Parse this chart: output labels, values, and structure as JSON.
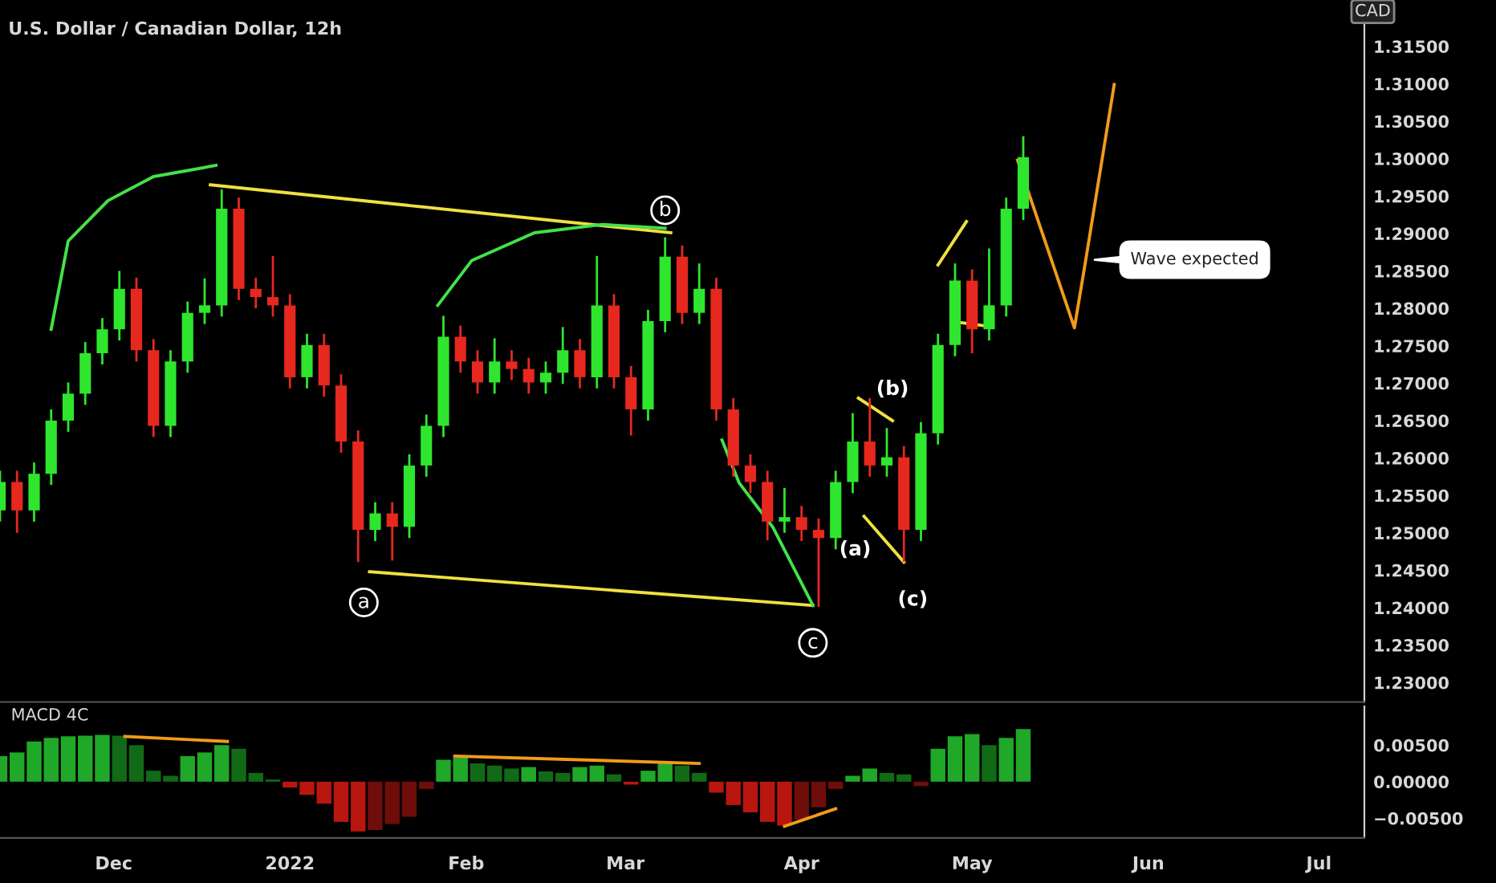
{
  "chart_data": [
    {
      "type": "candlestick",
      "title": "U.S. Dollar / Canadian Dollar, 12h",
      "x": [
        "2021-11-11",
        "2021-11-14",
        "2021-11-17",
        "2021-11-20",
        "2021-11-23",
        "2021-11-26",
        "2021-11-29",
        "2021-12-02",
        "2021-12-05",
        "2021-12-08",
        "2021-12-11",
        "2021-12-14",
        "2021-12-17",
        "2021-12-20",
        "2021-12-23",
        "2021-12-26",
        "2021-12-29",
        "2022-01-01",
        "2022-01-04",
        "2022-01-07",
        "2022-01-10",
        "2022-01-13",
        "2022-01-16",
        "2022-01-19",
        "2022-01-22",
        "2022-01-25",
        "2022-01-28",
        "2022-01-31",
        "2022-02-03",
        "2022-02-06",
        "2022-02-09",
        "2022-02-12",
        "2022-02-15",
        "2022-02-18",
        "2022-02-21",
        "2022-02-24",
        "2022-02-27",
        "2022-03-02",
        "2022-03-05",
        "2022-03-08",
        "2022-03-11",
        "2022-03-14",
        "2022-03-17",
        "2022-03-20",
        "2022-03-23",
        "2022-03-26",
        "2022-03-29",
        "2022-04-01",
        "2022-04-04",
        "2022-04-07",
        "2022-04-10",
        "2022-04-13",
        "2022-04-16",
        "2022-04-19",
        "2022-04-22",
        "2022-04-25",
        "2022-04-28",
        "2022-05-01",
        "2022-05-04",
        "2022-05-07",
        "2022-05-10"
      ],
      "ohlc": [
        [
          1.253,
          1.2583,
          1.2515,
          1.2568
        ],
        [
          1.2568,
          1.2583,
          1.25,
          1.253
        ],
        [
          1.253,
          1.2594,
          1.2515,
          1.2579
        ],
        [
          1.2579,
          1.2665,
          1.2564,
          1.265
        ],
        [
          1.265,
          1.2701,
          1.2635,
          1.2686
        ],
        [
          1.2686,
          1.2755,
          1.2671,
          1.274
        ],
        [
          1.274,
          1.2787,
          1.2725,
          1.2772
        ],
        [
          1.2772,
          1.285,
          1.2757,
          1.2826
        ],
        [
          1.2826,
          1.2841,
          1.2729,
          1.2744
        ],
        [
          1.2744,
          1.2759,
          1.2628,
          1.2643
        ],
        [
          1.2643,
          1.2744,
          1.2628,
          1.2729
        ],
        [
          1.2729,
          1.2809,
          1.2714,
          1.2794
        ],
        [
          1.2794,
          1.284,
          1.2779,
          1.2804
        ],
        [
          1.2804,
          1.2959,
          1.2789,
          1.2933
        ],
        [
          1.2933,
          1.2948,
          1.2811,
          1.2826
        ],
        [
          1.2826,
          1.2841,
          1.28,
          1.2815
        ],
        [
          1.2815,
          1.287,
          1.2789,
          1.2804
        ],
        [
          1.2804,
          1.2819,
          1.2693,
          1.2708
        ],
        [
          1.2708,
          1.2766,
          1.2693,
          1.2751
        ],
        [
          1.2751,
          1.2766,
          1.2682,
          1.2697
        ],
        [
          1.2697,
          1.2712,
          1.2607,
          1.2622
        ],
        [
          1.2622,
          1.2637,
          1.2461,
          1.2504
        ],
        [
          1.2504,
          1.2541,
          1.2489,
          1.2526
        ],
        [
          1.2526,
          1.2541,
          1.2463,
          1.2508
        ],
        [
          1.2508,
          1.2605,
          1.2493,
          1.259
        ],
        [
          1.259,
          1.2658,
          1.2575,
          1.2643
        ],
        [
          1.2643,
          1.279,
          1.2628,
          1.2762
        ],
        [
          1.2762,
          1.2777,
          1.2714,
          1.2729
        ],
        [
          1.2729,
          1.2744,
          1.2686,
          1.2701
        ],
        [
          1.2701,
          1.276,
          1.2686,
          1.2729
        ],
        [
          1.2729,
          1.2744,
          1.2704,
          1.2719
        ],
        [
          1.2719,
          1.2734,
          1.2686,
          1.2701
        ],
        [
          1.2701,
          1.2729,
          1.2686,
          1.2714
        ],
        [
          1.2714,
          1.2775,
          1.2699,
          1.2744
        ],
        [
          1.2744,
          1.2759,
          1.2693,
          1.2708
        ],
        [
          1.2708,
          1.287,
          1.2693,
          1.2804
        ],
        [
          1.2804,
          1.2819,
          1.2693,
          1.2708
        ],
        [
          1.2708,
          1.2723,
          1.263,
          1.2665
        ],
        [
          1.2665,
          1.2798,
          1.265,
          1.2783
        ],
        [
          1.2783,
          1.2895,
          1.2768,
          1.2869
        ],
        [
          1.2869,
          1.2884,
          1.2779,
          1.2794
        ],
        [
          1.2794,
          1.286,
          1.2779,
          1.2826
        ],
        [
          1.2826,
          1.2841,
          1.265,
          1.2665
        ],
        [
          1.2665,
          1.268,
          1.2575,
          1.259
        ],
        [
          1.259,
          1.2605,
          1.2553,
          1.2568
        ],
        [
          1.2568,
          1.2583,
          1.249,
          1.2515
        ],
        [
          1.2515,
          1.256,
          1.25,
          1.2521
        ],
        [
          1.2521,
          1.2536,
          1.2489,
          1.2504
        ],
        [
          1.2504,
          1.2519,
          1.2401,
          1.2493
        ],
        [
          1.2493,
          1.2583,
          1.2478,
          1.2568
        ],
        [
          1.2568,
          1.266,
          1.2553,
          1.2622
        ],
        [
          1.2622,
          1.268,
          1.2575,
          1.259
        ],
        [
          1.259,
          1.264,
          1.2575,
          1.2601
        ],
        [
          1.2601,
          1.2616,
          1.2461,
          1.2504
        ],
        [
          1.2504,
          1.2648,
          1.2489,
          1.2633
        ],
        [
          1.2633,
          1.2766,
          1.2618,
          1.2751
        ],
        [
          1.2751,
          1.286,
          1.2736,
          1.2837
        ],
        [
          1.2837,
          1.2852,
          1.274,
          1.2772
        ],
        [
          1.2772,
          1.288,
          1.2757,
          1.2804
        ],
        [
          1.2804,
          1.2948,
          1.2789,
          1.2933
        ],
        [
          1.2933,
          1.303,
          1.2918,
          1.3002
        ]
      ],
      "colors": [
        "#2ee62e",
        "#e6281e",
        "#2ee62e",
        "#2ee62e",
        "#2ee62e",
        "#2ee62e",
        "#2ee62e",
        "#2ee62e",
        "#e6281e",
        "#e6281e",
        "#2ee62e",
        "#2ee62e",
        "#2ee62e",
        "#2ee62e",
        "#e6281e",
        "#e6281e",
        "#e6281e",
        "#e6281e",
        "#2ee62e",
        "#e6281e",
        "#e6281e",
        "#e6281e",
        "#2ee62e",
        "#e6281e",
        "#2ee62e",
        "#2ee62e",
        "#2ee62e",
        "#e6281e",
        "#e6281e",
        "#2ee62e",
        "#e6281e",
        "#e6281e",
        "#2ee62e",
        "#2ee62e",
        "#e6281e",
        "#2ee62e",
        "#e6281e",
        "#e6281e",
        "#2ee62e",
        "#2ee62e",
        "#e6281e",
        "#2ee62e",
        "#e6281e",
        "#e6281e",
        "#e6281e",
        "#e6281e",
        "#2ee62e",
        "#e6281e",
        "#e6281e",
        "#2ee62e",
        "#2ee62e",
        "#e6281e",
        "#2ee62e",
        "#e6281e",
        "#2ee62e",
        "#2ee62e",
        "#2ee62e",
        "#e6281e",
        "#2ee62e",
        "#2ee62e",
        "#2ee62e"
      ],
      "series": [
        {
          "type": "line",
          "color": "#f0e040",
          "x": [
            "2021-12-18",
            "2022-03-09"
          ],
          "values": [
            1.2965,
            1.2901
          ]
        },
        {
          "type": "line",
          "color": "#f0e040",
          "x": [
            "2022-01-15",
            "2022-04-03"
          ],
          "values": [
            1.2448,
            1.2403
          ]
        },
        {
          "type": "line",
          "color": "#f0e040",
          "x": [
            "2022-04-11",
            "2022-04-17"
          ],
          "values": [
            1.268,
            1.265
          ]
        },
        {
          "type": "line",
          "color": "#f0e040",
          "x": [
            "2022-04-12",
            "2022-04-19"
          ],
          "values": [
            1.2522,
            1.2461
          ]
        },
        {
          "type": "line",
          "color": "#f0e040",
          "x": [
            "2022-04-25",
            "2022-04-30"
          ],
          "values": [
            1.2858,
            1.2916
          ]
        },
        {
          "type": "line",
          "color": "#f0e040",
          "x": [
            "2022-04-29",
            "2022-05-03"
          ],
          "values": [
            1.2781,
            1.2777
          ]
        },
        {
          "type": "line",
          "color": "#44e04a",
          "x": [
            "2021-11-20",
            "2021-11-23",
            "2021-11-30",
            "2021-12-08",
            "2021-12-19"
          ],
          "values": [
            1.2772,
            1.289,
            1.2944,
            1.2976,
            1.2991
          ]
        },
        {
          "type": "line",
          "color": "#44e04a",
          "x": [
            "2022-01-27",
            "2022-02-02",
            "2022-02-13",
            "2022-02-25",
            "2022-03-08"
          ],
          "values": [
            1.2804,
            1.2864,
            1.2901,
            1.2912,
            1.2907
          ]
        },
        {
          "type": "line",
          "color": "#44e04a",
          "x": [
            "2022-03-18",
            "2022-03-21",
            "2022-03-27",
            "2022-04-03"
          ],
          "values": [
            1.2624,
            1.2567,
            1.2507,
            1.2403
          ]
        },
        {
          "type": "line",
          "color": "#f29a1c",
          "x": [
            "2022-05-09",
            "2022-05-19",
            "2022-05-21",
            "2022-05-26"
          ],
          "values": [
            1.2998,
            1.2774,
            1.2865,
            1.3099
          ]
        }
      ],
      "annotations": [
        {
          "text": "a",
          "x": "2022-01-14",
          "y": 1.2407
        },
        {
          "text": "b",
          "x": "2022-03-08",
          "y": 1.2931
        },
        {
          "text": "c",
          "x": "2022-04-03",
          "y": 1.2353
        },
        {
          "text": "(a)",
          "x": "2022-04-12",
          "y": 1.2522
        },
        {
          "text": "(b)",
          "x": "2022-04-17",
          "y": 1.265
        },
        {
          "text": "(c)",
          "x": "2022-04-19",
          "y": 1.2461
        },
        {
          "text": "Wave expected",
          "x": "2022-05-21",
          "y": 1.2865
        },
        "CAD"
      ],
      "xlim": [
        "2021-11-11",
        "2022-07-09"
      ],
      "ylim": [
        1.2274,
        1.3212
      ],
      "yticks": [
        {
          "value": 1.23,
          "label": "1.23000"
        },
        {
          "value": 1.235,
          "label": "1.23500"
        },
        {
          "value": 1.24,
          "label": "1.24000"
        },
        {
          "value": 1.245,
          "label": "1.24500"
        },
        {
          "value": 1.25,
          "label": "1.25000"
        },
        {
          "value": 1.255,
          "label": "1.25500"
        },
        {
          "value": 1.26,
          "label": "1.26000"
        },
        {
          "value": 1.265,
          "label": "1.26500"
        },
        {
          "value": 1.27,
          "label": "1.27000"
        },
        {
          "value": 1.275,
          "label": "1.27500"
        },
        {
          "value": 1.28,
          "label": "1.28000"
        },
        {
          "value": 1.285,
          "label": "1.28500"
        },
        {
          "value": 1.29,
          "label": "1.29000"
        },
        {
          "value": 1.295,
          "label": "1.29500"
        },
        {
          "value": 1.3,
          "label": "1.30000"
        },
        {
          "value": 1.305,
          "label": "1.30500"
        },
        {
          "value": 1.31,
          "label": "1.31000"
        },
        {
          "value": 1.315,
          "label": "1.31500"
        }
      ],
      "tick_labels": "y",
      "grid": false
    },
    {
      "type": "bar",
      "title": "MACD 4C",
      "x": [
        "2021-11-11",
        "2021-11-14",
        "2021-11-17",
        "2021-11-20",
        "2021-11-23",
        "2021-11-26",
        "2021-11-29",
        "2021-12-02",
        "2021-12-05",
        "2021-12-08",
        "2021-12-11",
        "2021-12-14",
        "2021-12-17",
        "2021-12-20",
        "2021-12-23",
        "2021-12-26",
        "2021-12-29",
        "2022-01-01",
        "2022-01-04",
        "2022-01-07",
        "2022-01-10",
        "2022-01-13",
        "2022-01-16",
        "2022-01-19",
        "2022-01-22",
        "2022-01-25",
        "2022-01-28",
        "2022-01-31",
        "2022-02-03",
        "2022-02-06",
        "2022-02-09",
        "2022-02-12",
        "2022-02-15",
        "2022-02-18",
        "2022-02-21",
        "2022-02-24",
        "2022-02-27",
        "2022-03-02",
        "2022-03-05",
        "2022-03-08",
        "2022-03-11",
        "2022-03-14",
        "2022-03-17",
        "2022-03-20",
        "2022-03-23",
        "2022-03-26",
        "2022-03-29",
        "2022-04-01",
        "2022-04-04",
        "2022-04-07",
        "2022-04-10",
        "2022-04-13",
        "2022-04-16",
        "2022-04-19",
        "2022-04-22",
        "2022-04-25",
        "2022-04-28",
        "2022-05-01",
        "2022-05-04",
        "2022-05-07",
        "2022-05-10"
      ],
      "values": [
        0.0035,
        0.004,
        0.0055,
        0.006,
        0.0062,
        0.0063,
        0.0064,
        0.0063,
        0.005,
        0.0015,
        0.0008,
        0.0035,
        0.004,
        0.005,
        0.0045,
        0.0012,
        0.0003,
        -0.0008,
        -0.0018,
        -0.003,
        -0.0055,
        -0.0068,
        -0.0066,
        -0.0058,
        -0.0048,
        -0.001,
        0.003,
        0.0033,
        0.0025,
        0.0022,
        0.0018,
        0.002,
        0.0014,
        0.0012,
        0.002,
        0.0022,
        0.001,
        -0.0004,
        0.0015,
        0.0025,
        0.0022,
        0.0012,
        -0.0015,
        -0.0032,
        -0.0042,
        -0.0055,
        -0.006,
        -0.0052,
        -0.0035,
        -0.001,
        0.0008,
        0.0018,
        0.0012,
        0.001,
        -0.0006,
        0.0045,
        0.0062,
        0.0065,
        0.005,
        0.006,
        0.0072
      ],
      "colors": [
        "#20a828",
        "#20a828",
        "#20a828",
        "#20a828",
        "#20a828",
        "#20a828",
        "#20a828",
        "#116a16",
        "#116a16",
        "#116a16",
        "#116a16",
        "#20a828",
        "#20a828",
        "#20a828",
        "#116a16",
        "#116a16",
        "#116a16",
        "#b8160f",
        "#b8160f",
        "#b8160f",
        "#b8160f",
        "#b8160f",
        "#6e0d09",
        "#6e0d09",
        "#6e0d09",
        "#6e0d09",
        "#20a828",
        "#20a828",
        "#116a16",
        "#116a16",
        "#116a16",
        "#20a828",
        "#116a16",
        "#116a16",
        "#20a828",
        "#20a828",
        "#116a16",
        "#b8160f",
        "#20a828",
        "#20a828",
        "#116a16",
        "#116a16",
        "#b8160f",
        "#b8160f",
        "#b8160f",
        "#b8160f",
        "#b8160f",
        "#6e0d09",
        "#6e0d09",
        "#6e0d09",
        "#20a828",
        "#20a828",
        "#116a16",
        "#116a16",
        "#6e0d09",
        "#20a828",
        "#20a828",
        "#20a828",
        "#116a16",
        "#20a828",
        "#20a828"
      ],
      "series": [
        {
          "type": "line",
          "color": "#f29a1c",
          "x": [
            "2021-12-03",
            "2021-12-21"
          ],
          "values": [
            0.0062,
            0.0055
          ]
        },
        {
          "type": "line",
          "color": "#f29a1c",
          "x": [
            "2022-01-30",
            "2022-03-14"
          ],
          "values": [
            0.0035,
            0.0025
          ]
        },
        {
          "type": "line",
          "color": "#f29a1c",
          "x": [
            "2022-03-29",
            "2022-04-07"
          ],
          "values": [
            -0.0061,
            -0.0037
          ]
        }
      ],
      "xlim": [
        "2021-11-11",
        "2022-07-09"
      ],
      "xticks": [
        {
          "value": "2021-12-01",
          "label": "Dec"
        },
        {
          "value": "2022-01-01",
          "label": "2022"
        },
        {
          "value": "2022-02-01",
          "label": "Feb"
        },
        {
          "value": "2022-03-01",
          "label": "Mar"
        },
        {
          "value": "2022-04-01",
          "label": "Apr"
        },
        {
          "value": "2022-05-01",
          "label": "May"
        },
        {
          "value": "2022-06-01",
          "label": "Jun"
        },
        {
          "value": "2022-07-01",
          "label": "Jul"
        }
      ],
      "ylim": [
        -0.0077,
        0.0103
      ],
      "yticks": [
        {
          "value": -0.005,
          "label": "−0.00500"
        },
        {
          "value": 0,
          "label": "0.00000"
        },
        {
          "value": 0.005,
          "label": "0.00500"
        }
      ],
      "grid": false
    }
  ]
}
